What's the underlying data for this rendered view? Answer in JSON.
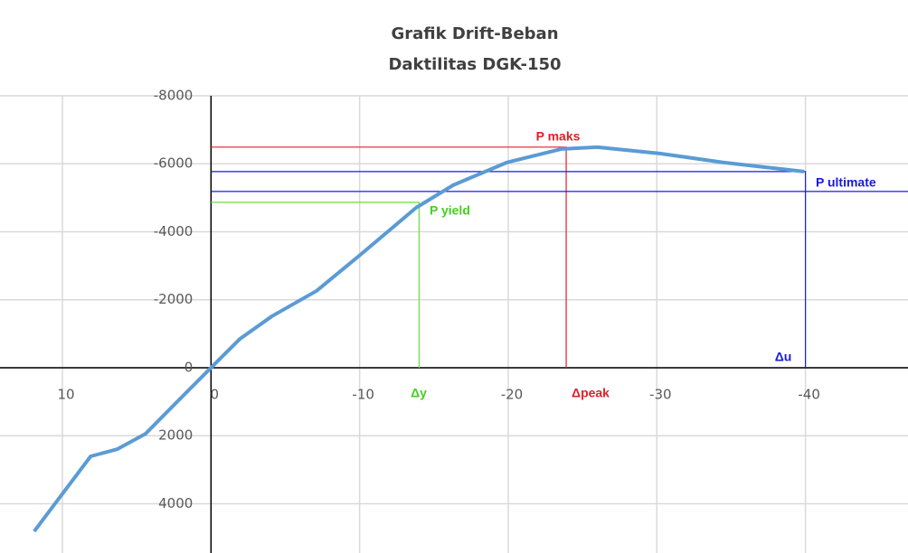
{
  "chart_data": {
    "type": "line",
    "title": "Grafik Drift-Beban",
    "subtitle": "Daktilitas DGK-150",
    "xlim": [
      14.2,
      -46.9
    ],
    "ylim": [
      5450,
      -8000
    ],
    "xticks": [
      10,
      0,
      -10,
      -20,
      -30,
      -40
    ],
    "yticks": [
      -8000,
      -6000,
      -4000,
      -2000,
      0,
      2000,
      4000
    ],
    "grid": true,
    "series": [
      {
        "color": "#5b9bd5",
        "x": [
          11.9,
          8.1,
          6.3,
          4.4,
          2.0,
          0,
          -1.95,
          -4.1,
          -7.1,
          -10.2,
          -13.8,
          -16.3,
          -19.9,
          -23.6,
          -26.0,
          -30.2,
          -34.5,
          -39.9
        ],
        "values": [
          4814,
          2606,
          2394,
          1940,
          878,
          0,
          -851,
          -1516,
          -2260,
          -3378,
          -4707,
          -5372,
          -6037,
          -6436,
          -6489,
          -6303,
          -6037,
          -5771
        ]
      }
    ],
    "reference_lines": [
      {
        "color": "#e0202a",
        "points": [
          [
            0,
            -6490
          ],
          [
            -23.9,
            -6490
          ],
          [
            -23.9,
            0
          ]
        ]
      },
      {
        "color": "#1a1adc",
        "points": [
          [
            0,
            -5770
          ],
          [
            -40,
            -5770
          ],
          [
            -40,
            0
          ]
        ]
      },
      {
        "color": "#1a1adc",
        "points": [
          [
            0,
            -5186
          ],
          [
            -46.9,
            -5186
          ]
        ]
      },
      {
        "color": "#66e040",
        "points": [
          [
            0,
            -4867
          ],
          [
            -14,
            -4867
          ],
          [
            -14,
            0
          ]
        ]
      }
    ],
    "annotations": [
      {
        "text": "P maks",
        "color": "#e0202a"
      },
      {
        "text": "P yield",
        "color": "#44d020"
      },
      {
        "text": "P ultimate",
        "color": "#1a1adc"
      },
      {
        "text": "Δy",
        "color": "#44d020"
      },
      {
        "text": "Δpeak",
        "color": "#e0202a"
      },
      {
        "text": "Δu",
        "color": "#1a1adc"
      }
    ]
  }
}
